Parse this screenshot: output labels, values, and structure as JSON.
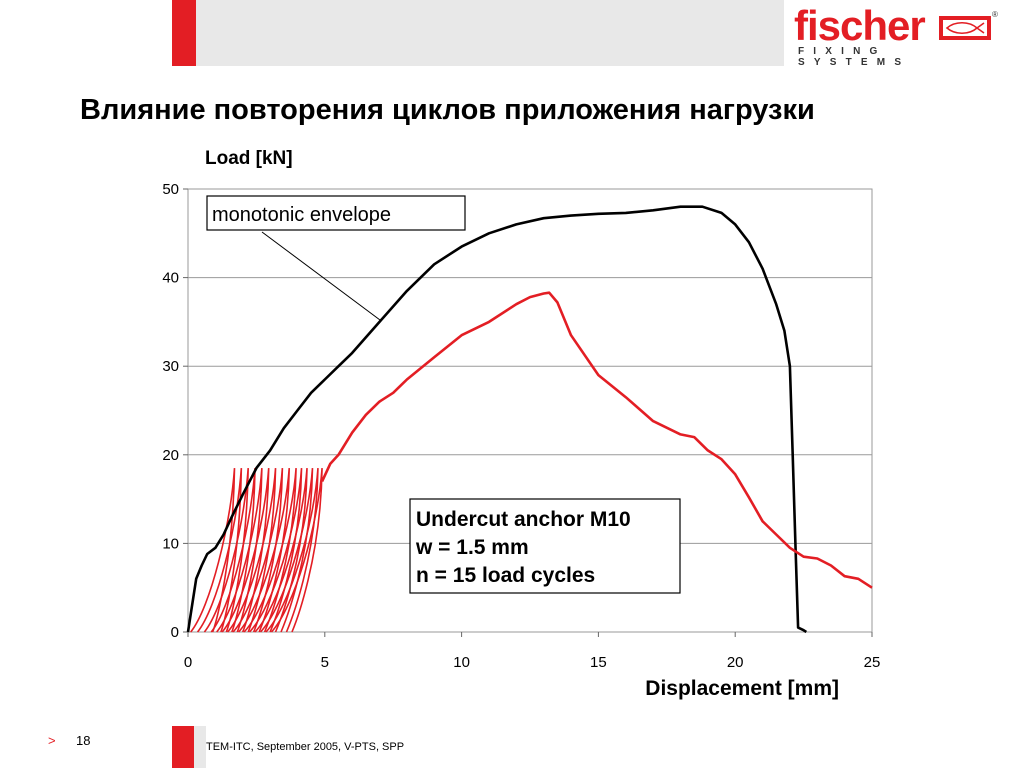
{
  "slide": {
    "title": "Влияние повторения циклов приложения нагрузки",
    "page": "18",
    "footer": "TEM-ITC, September 2005, V-PTS, SPP",
    "nav_marker": ">"
  },
  "brand": {
    "name": "fischer",
    "tagline": "FIXING SYSTEMS",
    "registered": "®",
    "accent": "#e31e24"
  },
  "chart_data": {
    "type": "line",
    "ylabel": "Load [kN]",
    "xlabel": "Displacement [mm]",
    "xlim": [
      0,
      25
    ],
    "ylim": [
      0,
      50
    ],
    "xticks": [
      0,
      5,
      10,
      15,
      20,
      25
    ],
    "yticks": [
      0,
      10,
      20,
      30,
      40,
      50
    ],
    "grid": "horizontal",
    "annotations": [
      {
        "text": "monotonic envelope",
        "x": 10,
        "y": 47
      },
      {
        "lines": [
          "Undercut anchor M10",
          "w = 1.5 mm",
          "n = 15 load cycles"
        ],
        "x": 16.3,
        "y": 12
      }
    ],
    "series": [
      {
        "color": "#000000",
        "points": [
          [
            0,
            0
          ],
          [
            0.1,
            2
          ],
          [
            0.3,
            6
          ],
          [
            0.5,
            7.5
          ],
          [
            0.7,
            8.8
          ],
          [
            1,
            9.5
          ],
          [
            1.3,
            11
          ],
          [
            1.6,
            13
          ],
          [
            2,
            15.5
          ],
          [
            2.5,
            18.5
          ],
          [
            3,
            20.5
          ],
          [
            3.5,
            23
          ],
          [
            4,
            25
          ],
          [
            4.5,
            27
          ],
          [
            5,
            28.5
          ],
          [
            5.5,
            30
          ],
          [
            6,
            31.5
          ],
          [
            7,
            35
          ],
          [
            8,
            38.5
          ],
          [
            9,
            41.5
          ],
          [
            10,
            43.5
          ],
          [
            11,
            45
          ],
          [
            12,
            46
          ],
          [
            13,
            46.7
          ],
          [
            14,
            47
          ],
          [
            15,
            47.2
          ],
          [
            16,
            47.3
          ],
          [
            17,
            47.6
          ],
          [
            18,
            48
          ],
          [
            18.8,
            48
          ],
          [
            19.5,
            47.3
          ],
          [
            20,
            46
          ],
          [
            20.5,
            44
          ],
          [
            21,
            41
          ],
          [
            21.5,
            37
          ],
          [
            21.8,
            34
          ],
          [
            22,
            30
          ],
          [
            22.1,
            20
          ],
          [
            22.2,
            10
          ],
          [
            22.3,
            0.5
          ],
          [
            22.5,
            0.2
          ],
          [
            22.6,
            0
          ]
        ]
      },
      {
        "color": "#e31e24",
        "points": [
          [
            4.9,
            17
          ],
          [
            5.2,
            19
          ],
          [
            5.5,
            20
          ],
          [
            6,
            22.5
          ],
          [
            6.5,
            24.5
          ],
          [
            7,
            26
          ],
          [
            7.5,
            27
          ],
          [
            8,
            28.5
          ],
          [
            9,
            31
          ],
          [
            10,
            33.5
          ],
          [
            11,
            35
          ],
          [
            12,
            37
          ],
          [
            12.5,
            37.8
          ],
          [
            13,
            38.2
          ],
          [
            13.2,
            38.3
          ],
          [
            13.5,
            37.2
          ],
          [
            14,
            33.5
          ],
          [
            15,
            29
          ],
          [
            16,
            26.5
          ],
          [
            17,
            23.8
          ],
          [
            18,
            22.3
          ],
          [
            18.5,
            22
          ],
          [
            19,
            20.5
          ],
          [
            19.5,
            19.5
          ],
          [
            20,
            17.8
          ],
          [
            20.5,
            15.2
          ],
          [
            21,
            12.5
          ],
          [
            21.5,
            11
          ],
          [
            22,
            9.5
          ],
          [
            22.5,
            8.5
          ],
          [
            23,
            8.3
          ],
          [
            23.5,
            7.5
          ],
          [
            24,
            6.3
          ],
          [
            24.5,
            6
          ],
          [
            25,
            5
          ]
        ]
      }
    ],
    "cycles": {
      "color": "#e31e24",
      "count": 15,
      "peak_load": 18.5,
      "start_x": [
        0.1,
        0.35,
        0.6,
        0.85,
        1.05,
        1.25,
        1.45,
        1.65,
        1.85,
        2.05,
        2.25,
        2.45,
        2.65,
        2.85,
        3.05
      ],
      "unload_x": [
        0.9,
        1.2,
        1.4,
        1.6,
        1.8,
        2.0,
        2.2,
        2.4,
        2.6,
        2.8,
        3.0,
        3.2,
        3.4,
        3.6,
        3.8
      ],
      "peak_x": [
        1.7,
        1.95,
        2.2,
        2.45,
        2.7,
        2.95,
        3.2,
        3.45,
        3.7,
        3.95,
        4.15,
        4.35,
        4.55,
        4.75,
        4.9
      ]
    }
  }
}
